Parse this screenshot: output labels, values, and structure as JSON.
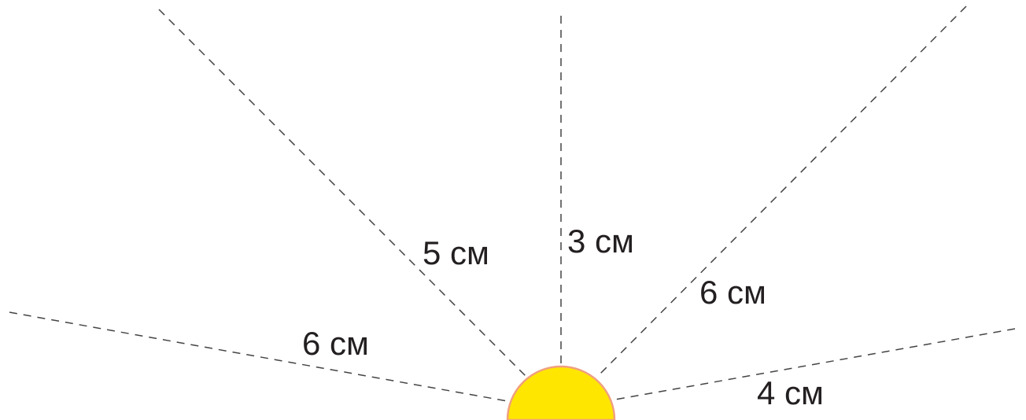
{
  "rays": [
    {
      "label": "6 см"
    },
    {
      "label": "5 см"
    },
    {
      "label": "3 см"
    },
    {
      "label": "6 см"
    },
    {
      "label": "4 см"
    }
  ]
}
